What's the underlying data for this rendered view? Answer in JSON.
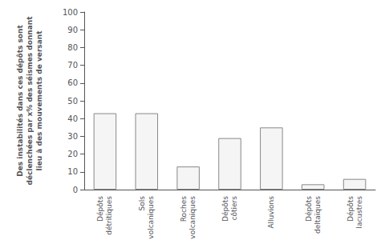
{
  "chart_data": {
    "type": "bar",
    "categories": [
      "Dépôts\ndétritiques",
      "Sols\nvolcaniques",
      "Roches\nvolcaniques",
      "Dépôts\ncôtiers",
      "Alluvions",
      "Dépôts\ndeltaïques",
      "Dépôts\nlacustres"
    ],
    "values": [
      43,
      43,
      13,
      29,
      35,
      3,
      6
    ],
    "color": "#f5f5f5",
    "ylabel": "Des instabilités dans ces dépôts sont\ndéclenchées par x% des séismes donnant\nlieu à des mouvements de versant",
    "ylim": [
      0,
      100
    ],
    "yticks": [
      0,
      10,
      20,
      30,
      40,
      50,
      60,
      70,
      80,
      90,
      100
    ],
    "grid": false
  }
}
